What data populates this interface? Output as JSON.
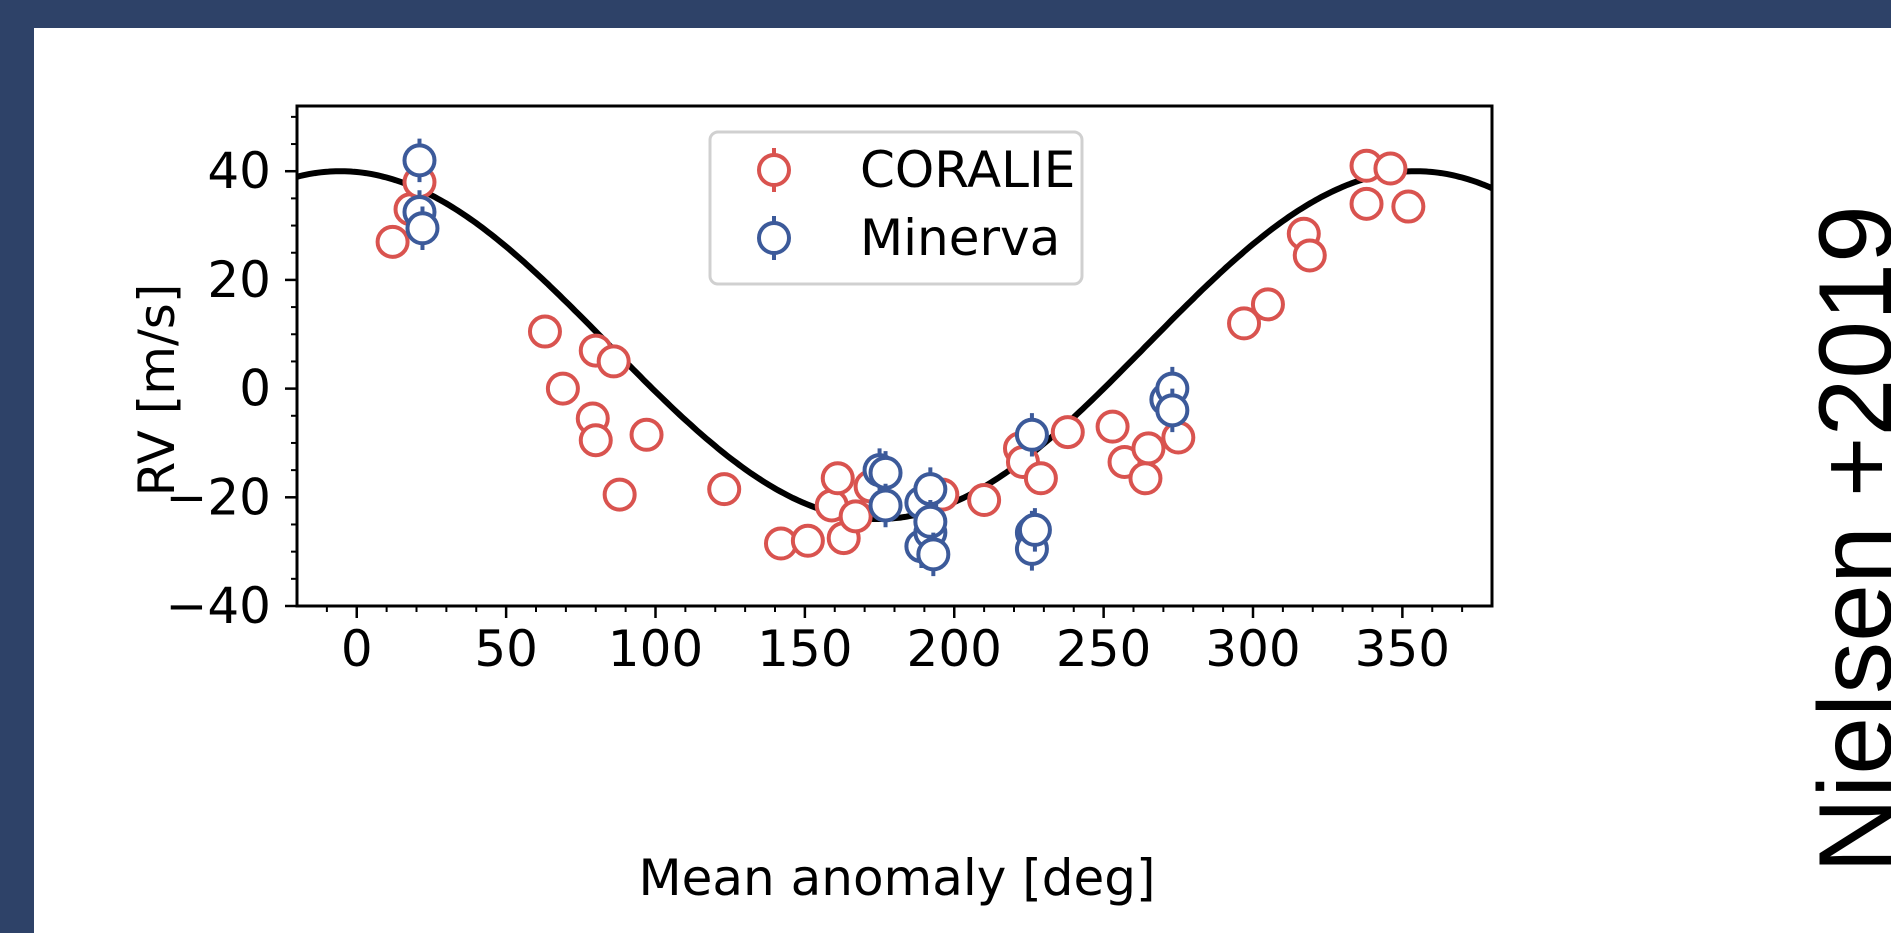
{
  "side_caption": "Nielsen +2019",
  "colors": {
    "frame": "#2e4268",
    "coralie": "#d9534f",
    "minerva": "#3c5a9a",
    "model": "#000000"
  },
  "chart_data": {
    "type": "scatter",
    "title": "",
    "xlabel": "Mean anomaly [deg]",
    "ylabel": "RV [m/s]",
    "xlim": [
      -20,
      380
    ],
    "ylim": [
      -40,
      52
    ],
    "xticks": [
      0,
      50,
      100,
      150,
      200,
      250,
      300,
      350
    ],
    "yticks": [
      -40,
      -20,
      0,
      20,
      40
    ],
    "xtick_labels": [
      "0",
      "50",
      "100",
      "150",
      "200",
      "250",
      "300",
      "350"
    ],
    "ytick_labels": [
      "−40",
      "−20",
      "0",
      "20",
      "40"
    ],
    "grid": false,
    "legend": {
      "placement": "top-center"
    },
    "model": {
      "type": "line",
      "amplitude": 32,
      "offset": 8,
      "phase_deg": 5.5,
      "color": "#000000"
    },
    "series": [
      {
        "name": "CORALIE",
        "color": "#d9534f",
        "points": [
          {
            "x": 12,
            "y": 27,
            "err": 2.5
          },
          {
            "x": 18,
            "y": 33,
            "err": 2
          },
          {
            "x": 21,
            "y": 38,
            "err": 2
          },
          {
            "x": 63,
            "y": 10.5,
            "err": 2
          },
          {
            "x": 69,
            "y": 0,
            "err": 2
          },
          {
            "x": 79,
            "y": -5.5,
            "err": 2
          },
          {
            "x": 80,
            "y": -9.5,
            "err": 2
          },
          {
            "x": 80,
            "y": 7,
            "err": 3
          },
          {
            "x": 86,
            "y": 5,
            "err": 3
          },
          {
            "x": 88,
            "y": -19.5,
            "err": 3
          },
          {
            "x": 97,
            "y": -8.5,
            "err": 2
          },
          {
            "x": 123,
            "y": -18.5,
            "err": 2
          },
          {
            "x": 142,
            "y": -28.5,
            "err": 2
          },
          {
            "x": 151,
            "y": -28,
            "err": 2
          },
          {
            "x": 159,
            "y": -21.5,
            "err": 2
          },
          {
            "x": 161,
            "y": -16.5,
            "err": 2.5
          },
          {
            "x": 163,
            "y": -27.5,
            "err": 3
          },
          {
            "x": 167,
            "y": -23.5,
            "err": 2
          },
          {
            "x": 172,
            "y": -18,
            "err": 2
          },
          {
            "x": 196,
            "y": -19.5,
            "err": 3
          },
          {
            "x": 210,
            "y": -20.5,
            "err": 2
          },
          {
            "x": 222,
            "y": -11,
            "err": 2
          },
          {
            "x": 223,
            "y": -13.5,
            "err": 2
          },
          {
            "x": 229,
            "y": -16.5,
            "err": 3
          },
          {
            "x": 238,
            "y": -8,
            "err": 2
          },
          {
            "x": 253,
            "y": -7,
            "err": 3
          },
          {
            "x": 257,
            "y": -13.5,
            "err": 2
          },
          {
            "x": 264,
            "y": -16.5,
            "err": 2
          },
          {
            "x": 265,
            "y": -11,
            "err": 2
          },
          {
            "x": 275,
            "y": -9,
            "err": 3
          },
          {
            "x": 297,
            "y": 12,
            "err": 2
          },
          {
            "x": 305,
            "y": 15.5,
            "err": 2
          },
          {
            "x": 317,
            "y": 28.5,
            "err": 3
          },
          {
            "x": 319,
            "y": 24.5,
            "err": 2.5
          },
          {
            "x": 338,
            "y": 34,
            "err": 2
          },
          {
            "x": 338,
            "y": 41,
            "err": 2
          },
          {
            "x": 346,
            "y": 40.5,
            "err": 2
          },
          {
            "x": 352,
            "y": 33.5,
            "err": 3
          }
        ]
      },
      {
        "name": "Minerva",
        "color": "#3c5a9a",
        "points": [
          {
            "x": 21,
            "y": 42,
            "err": 4
          },
          {
            "x": 21,
            "y": 32.5,
            "err": 4
          },
          {
            "x": 22,
            "y": 29.5,
            "err": 4
          },
          {
            "x": 175,
            "y": -15,
            "err": 4
          },
          {
            "x": 177,
            "y": -15.5,
            "err": 4
          },
          {
            "x": 177,
            "y": -21.5,
            "err": 4
          },
          {
            "x": 189,
            "y": -21,
            "err": 4
          },
          {
            "x": 189,
            "y": -29,
            "err": 4
          },
          {
            "x": 192,
            "y": -26.5,
            "err": 4
          },
          {
            "x": 192,
            "y": -18.5,
            "err": 4
          },
          {
            "x": 192,
            "y": -24.5,
            "err": 4
          },
          {
            "x": 193,
            "y": -30.5,
            "err": 4
          },
          {
            "x": 226,
            "y": -8.5,
            "err": 4
          },
          {
            "x": 226,
            "y": -26.5,
            "err": 4
          },
          {
            "x": 226,
            "y": -29.5,
            "err": 4
          },
          {
            "x": 227,
            "y": -26,
            "err": 4
          },
          {
            "x": 271,
            "y": -2,
            "err": 4
          },
          {
            "x": 273,
            "y": 0,
            "err": 4
          },
          {
            "x": 273,
            "y": -4,
            "err": 4
          }
        ]
      }
    ]
  }
}
